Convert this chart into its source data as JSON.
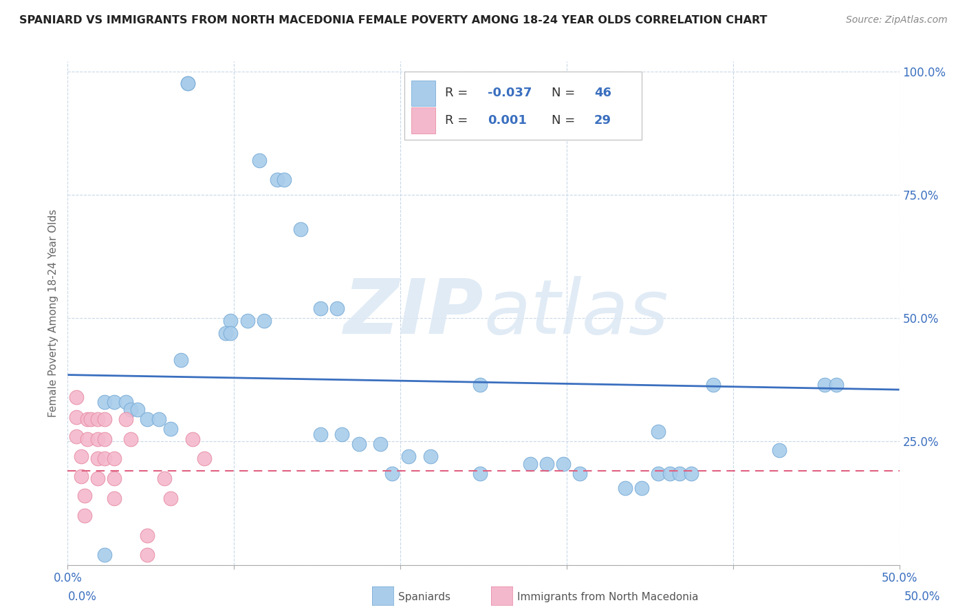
{
  "title": "SPANIARD VS IMMIGRANTS FROM NORTH MACEDONIA FEMALE POVERTY AMONG 18-24 YEAR OLDS CORRELATION CHART",
  "source": "Source: ZipAtlas.com",
  "ylabel": "Female Poverty Among 18-24 Year Olds",
  "xlim": [
    0.0,
    0.5
  ],
  "ylim": [
    0.0,
    1.02
  ],
  "xticks": [
    0.0,
    0.1,
    0.2,
    0.3,
    0.4,
    0.5
  ],
  "xticklabels": [
    "0.0%",
    "",
    "",
    "",
    "",
    "50.0%"
  ],
  "yticks": [
    0.0,
    0.25,
    0.5,
    0.75,
    1.0
  ],
  "yticklabels": [
    "",
    "25.0%",
    "50.0%",
    "75.0%",
    "100.0%"
  ],
  "grid_color": "#c8d8e8",
  "background_color": "#ffffff",
  "watermark": "ZIPatlas",
  "spaniards_color": "#a8ccea",
  "spaniards_edge": "#7aadd8",
  "immigrants_color": "#f4b8cc",
  "immigrants_edge": "#e890a8",
  "legend_label_1": "Spaniards",
  "legend_label_2": "Immigrants from North Macedonia",
  "spaniards_x": [
    0.072,
    0.072,
    0.115,
    0.126,
    0.13,
    0.14,
    0.152,
    0.162,
    0.098,
    0.108,
    0.118,
    0.095,
    0.098,
    0.068,
    0.022,
    0.028,
    0.035,
    0.038,
    0.042,
    0.048,
    0.055,
    0.062,
    0.152,
    0.165,
    0.175,
    0.188,
    0.205,
    0.218,
    0.248,
    0.278,
    0.288,
    0.298,
    0.308,
    0.355,
    0.362,
    0.368,
    0.375,
    0.248,
    0.388,
    0.455,
    0.462,
    0.355,
    0.428,
    0.195,
    0.022,
    0.335,
    0.345
  ],
  "spaniards_y": [
    0.975,
    0.975,
    0.82,
    0.78,
    0.78,
    0.68,
    0.52,
    0.52,
    0.495,
    0.495,
    0.495,
    0.47,
    0.47,
    0.415,
    0.33,
    0.33,
    0.33,
    0.315,
    0.315,
    0.295,
    0.295,
    0.275,
    0.265,
    0.265,
    0.245,
    0.245,
    0.22,
    0.22,
    0.365,
    0.205,
    0.205,
    0.205,
    0.185,
    0.185,
    0.185,
    0.185,
    0.185,
    0.185,
    0.365,
    0.365,
    0.365,
    0.27,
    0.232,
    0.185,
    0.02,
    0.155,
    0.155
  ],
  "immigrants_x": [
    0.005,
    0.005,
    0.005,
    0.008,
    0.008,
    0.01,
    0.01,
    0.012,
    0.012,
    0.014,
    0.018,
    0.018,
    0.018,
    0.018,
    0.022,
    0.022,
    0.022,
    0.028,
    0.028,
    0.028,
    0.035,
    0.038,
    0.048,
    0.048,
    0.058,
    0.062,
    0.075,
    0.082
  ],
  "immigrants_y": [
    0.34,
    0.3,
    0.26,
    0.22,
    0.18,
    0.14,
    0.1,
    0.295,
    0.255,
    0.295,
    0.295,
    0.255,
    0.215,
    0.175,
    0.295,
    0.255,
    0.215,
    0.215,
    0.175,
    0.135,
    0.295,
    0.255,
    0.06,
    0.02,
    0.175,
    0.135,
    0.255,
    0.215
  ],
  "blue_line_x0": 0.0,
  "blue_line_x1": 0.5,
  "blue_line_y0": 0.385,
  "blue_line_y1": 0.355,
  "pink_line_x0": 0.0,
  "pink_line_x1": 0.5,
  "pink_line_y": 0.19
}
